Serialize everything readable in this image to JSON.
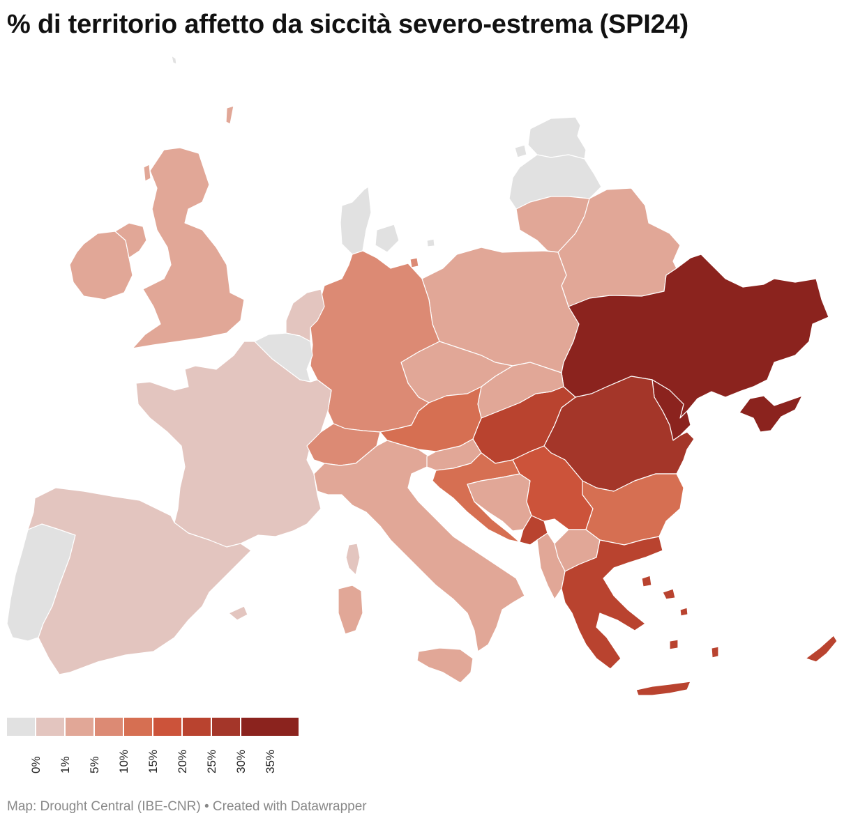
{
  "title": "% di territorio affetto da siccità severo-estrema  (SPI24)",
  "credit": "Map: Drought Central (IBE-CNR) • Created with Datawrapper",
  "legend": {
    "colors": [
      "#e1e1e1",
      "#e3c5bf",
      "#e1a797",
      "#dc8a74",
      "#d66f52",
      "#cc533a",
      "#b9432f",
      "#a43629",
      "#8b231e"
    ],
    "labels": [
      "0%",
      "1%",
      "5%",
      "10%",
      "15%",
      "20%",
      "25%",
      "30%",
      "35%"
    ]
  },
  "countries": [
    {
      "name": "Norway",
      "class": "0%",
      "color": "#e1e1e1"
    },
    {
      "name": "Estonia",
      "class": "0%",
      "color": "#e1e1e1"
    },
    {
      "name": "Latvia",
      "class": "0%",
      "color": "#e1e1e1"
    },
    {
      "name": "Denmark",
      "class": "0%",
      "color": "#e1e1e1"
    },
    {
      "name": "Belgium",
      "class": "0%",
      "color": "#e1e1e1"
    },
    {
      "name": "Portugal",
      "class": "0%",
      "color": "#e1e1e1"
    },
    {
      "name": "France",
      "class": "1%",
      "color": "#e3c5bf"
    },
    {
      "name": "Spain",
      "class": "1%",
      "color": "#e3c5bf"
    },
    {
      "name": "Netherlands",
      "class": "1%",
      "color": "#e3c5bf"
    },
    {
      "name": "United Kingdom",
      "class": "5%",
      "color": "#e1a797"
    },
    {
      "name": "Ireland",
      "class": "5%",
      "color": "#e1a797"
    },
    {
      "name": "Lithuania",
      "class": "5%",
      "color": "#e1a797"
    },
    {
      "name": "Belarus",
      "class": "5%",
      "color": "#e1a797"
    },
    {
      "name": "Poland",
      "class": "5%",
      "color": "#e1a797"
    },
    {
      "name": "Czechia",
      "class": "5%",
      "color": "#e1a797"
    },
    {
      "name": "Slovakia",
      "class": "5%",
      "color": "#e1a797"
    },
    {
      "name": "Italy",
      "class": "5%",
      "color": "#e1a797"
    },
    {
      "name": "Slovenia",
      "class": "5%",
      "color": "#e1a797"
    },
    {
      "name": "Bosnia and Herzegovina",
      "class": "5%",
      "color": "#e1a797"
    },
    {
      "name": "Albania",
      "class": "5%",
      "color": "#e1a797"
    },
    {
      "name": "North Macedonia",
      "class": "5%",
      "color": "#e1a797"
    },
    {
      "name": "Germany",
      "class": "10%",
      "color": "#dc8a74"
    },
    {
      "name": "Switzerland",
      "class": "10%",
      "color": "#dc8a74"
    },
    {
      "name": "Austria",
      "class": "15%",
      "color": "#d66f52"
    },
    {
      "name": "Croatia",
      "class": "15%",
      "color": "#d66f52"
    },
    {
      "name": "Bulgaria",
      "class": "15%",
      "color": "#d66f52"
    },
    {
      "name": "Serbia",
      "class": "20%",
      "color": "#cc533a"
    },
    {
      "name": "Hungary",
      "class": "25%",
      "color": "#b9432f"
    },
    {
      "name": "Greece",
      "class": "25%",
      "color": "#b9432f"
    },
    {
      "name": "Montenegro",
      "class": "25%",
      "color": "#b9432f"
    },
    {
      "name": "Cyprus",
      "class": "25%",
      "color": "#b9432f"
    },
    {
      "name": "Romania",
      "class": "30%",
      "color": "#a43629"
    },
    {
      "name": "Ukraine",
      "class": "35%",
      "color": "#8b231e"
    },
    {
      "name": "Moldova",
      "class": "35%",
      "color": "#8b231e"
    }
  ]
}
